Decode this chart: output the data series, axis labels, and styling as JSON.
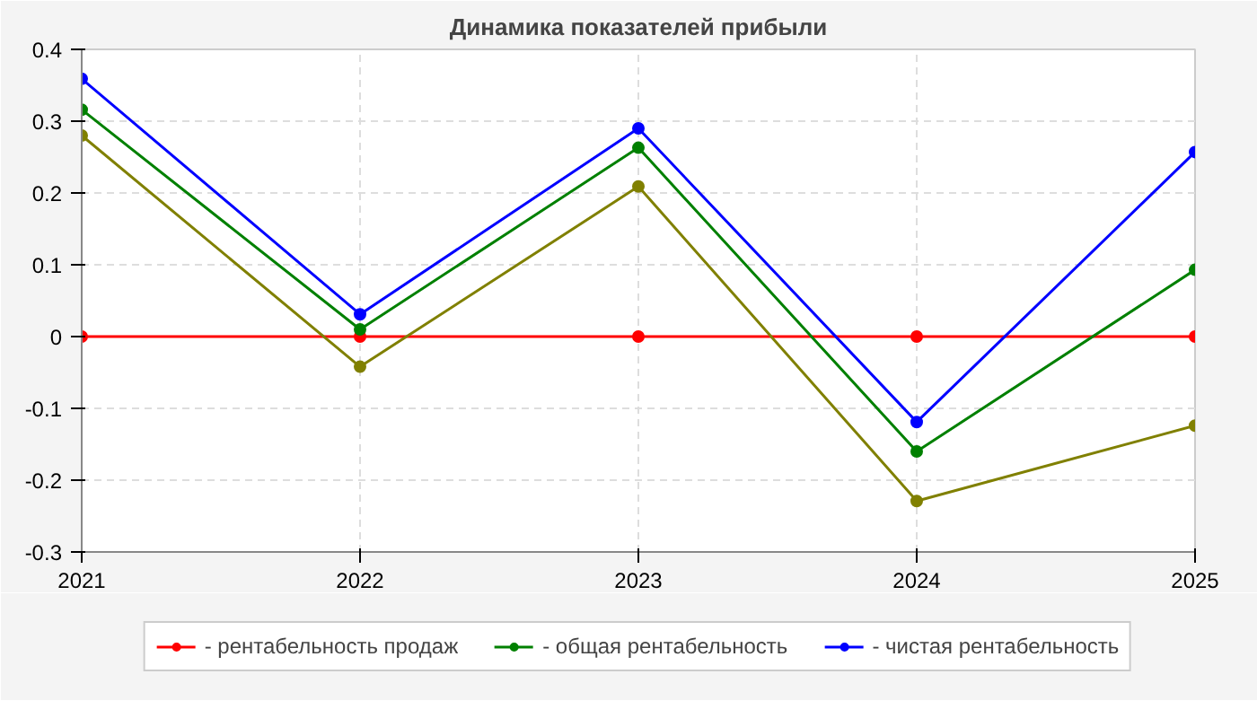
{
  "chart_data": {
    "type": "line",
    "title": "Динамика показателей прибыли",
    "x": [
      2021,
      2022,
      2023,
      2024,
      2025
    ],
    "series": [
      {
        "name": "- рентабельность продаж",
        "color": "#ff0000",
        "values": [
          0,
          0,
          0,
          0,
          0
        ]
      },
      {
        "name": "- общая рентабельность",
        "color": "#008000",
        "values": [
          0.316,
          0.01,
          0.263,
          -0.16,
          0.093
        ]
      },
      {
        "name": "- чистая рентабельность",
        "color": "#0000ff",
        "values": [
          0.359,
          0.031,
          0.29,
          -0.119,
          0.257
        ]
      },
      {
        "color": "#808000",
        "values": [
          0.28,
          -0.042,
          0.209,
          -0.229,
          -0.124
        ]
      }
    ],
    "xlim": [
      2021,
      2025
    ],
    "xticks": [
      2021,
      2022,
      2023,
      2024,
      2025
    ],
    "ylim": [
      -0.3,
      0.4
    ],
    "yticks": [
      -0.3,
      -0.2,
      -0.1,
      0,
      0.1,
      0.2,
      0.3,
      0.4
    ],
    "grid": true,
    "legend": "bottom",
    "marker": "circle",
    "line_style": "solid"
  }
}
